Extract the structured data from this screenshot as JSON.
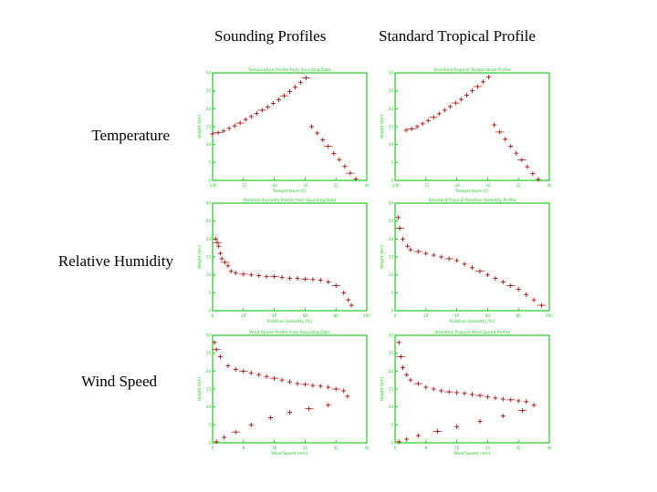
{
  "headers": {
    "col1": "Sounding Profiles",
    "col2": "Standard Tropical Profile"
  },
  "rows": {
    "temperature": "Temperature",
    "humidity": "Relative Humidity",
    "wind": "Wind Speed"
  },
  "colors": {
    "axis": "#22cc22",
    "data": "#aa1111",
    "background": "#ffffff"
  },
  "chart_data": [
    {
      "type": "scatter",
      "title": "Temperature Profile from Sounding Data",
      "xlabel": "Temperature (C)",
      "ylabel": "Height (km)",
      "xlim": [
        -100,
        40
      ],
      "ylim": [
        0,
        30
      ],
      "x": [
        -100,
        -95,
        -90,
        -85,
        -80,
        -75,
        -70,
        -65,
        -60,
        -55,
        -50,
        -45,
        -40,
        -35,
        -30,
        -25,
        -20,
        -15,
        -10,
        -5,
        0,
        5,
        10,
        15,
        20,
        25,
        30
      ],
      "y": [
        13,
        13.3,
        13.8,
        14.5,
        15.2,
        16,
        17,
        17.8,
        18.7,
        19.6,
        20.5,
        21.5,
        22.5,
        23.6,
        24.8,
        26,
        27.3,
        28.6,
        15,
        13.2,
        11.3,
        9.5,
        7.5,
        5.8,
        3.9,
        2,
        0.4
      ]
    },
    {
      "type": "scatter",
      "title": "Standard Tropical Temperature Profile",
      "xlabel": "Temperature (C)",
      "ylabel": "Height (km)",
      "xlim": [
        -100,
        40
      ],
      "ylim": [
        0,
        30
      ],
      "x": [
        -90,
        -85,
        -80,
        -75,
        -70,
        -65,
        -60,
        -55,
        -50,
        -45,
        -40,
        -35,
        -30,
        -25,
        -20,
        -15,
        -10,
        -5,
        0,
        5,
        10,
        15,
        20,
        25,
        30
      ],
      "y": [
        14,
        14.4,
        15,
        15.8,
        16.7,
        17.6,
        18.6,
        19.6,
        20.6,
        21.6,
        22.6,
        23.8,
        25,
        26.2,
        27.5,
        28.8,
        15.5,
        13.5,
        11.5,
        9.5,
        7.6,
        5.7,
        3.8,
        1.9,
        0.3
      ]
    },
    {
      "type": "scatter",
      "title": "Relative Humidity Profile from Sounding Data",
      "xlabel": "Relative Humidity (%)",
      "ylabel": "Height (km)",
      "xlim": [
        0,
        100
      ],
      "ylim": [
        0,
        30
      ],
      "x": [
        2,
        3,
        4,
        5,
        6,
        8,
        10,
        12,
        15,
        20,
        25,
        30,
        35,
        40,
        45,
        50,
        55,
        60,
        65,
        70,
        75,
        80,
        85,
        88,
        90
      ],
      "y": [
        20,
        19,
        18,
        16,
        14.5,
        13.5,
        12.5,
        11,
        10.5,
        10.2,
        10,
        9.8,
        9.5,
        9.5,
        9.3,
        9,
        9,
        8.8,
        8.7,
        8.5,
        8,
        7,
        5,
        3,
        1.5
      ]
    },
    {
      "type": "scatter",
      "title": "Standard Tropical Relative Humidity Profile",
      "xlabel": "Relative Humidity (%)",
      "ylabel": "Height (km)",
      "xlim": [
        0,
        100
      ],
      "ylim": [
        0,
        30
      ],
      "x": [
        2,
        3,
        5,
        8,
        10,
        15,
        20,
        25,
        30,
        35,
        40,
        45,
        50,
        55,
        60,
        65,
        70,
        75,
        80,
        85,
        90,
        95
      ],
      "y": [
        26,
        23,
        20,
        18,
        17,
        16.5,
        16,
        15.5,
        15,
        14.5,
        14,
        13,
        12,
        11,
        10,
        9,
        8,
        7,
        6,
        4.5,
        3,
        1.5
      ]
    },
    {
      "type": "scatter",
      "title": "Wind Speed Profile from Sounding Data",
      "xlabel": "Wind Speed (m/s)",
      "ylabel": "Height (km)",
      "xlim": [
        0,
        40
      ],
      "ylim": [
        0,
        30
      ],
      "x": [
        0.5,
        1,
        2,
        4,
        6,
        8,
        10,
        12,
        14,
        16,
        18,
        20,
        22,
        24,
        26,
        28,
        30,
        32,
        34,
        35,
        30,
        25,
        20,
        15,
        10,
        6,
        3,
        1
      ],
      "y": [
        28,
        26,
        24,
        21.5,
        20.5,
        20,
        19.5,
        19,
        18.5,
        18,
        17.5,
        17,
        16.5,
        16.3,
        16,
        15.8,
        15.5,
        15,
        14.5,
        13,
        10.5,
        9.5,
        8.5,
        7,
        5,
        3,
        1.5,
        0.3
      ]
    },
    {
      "type": "scatter",
      "title": "Standard Tropical Wind Speed Profile",
      "xlabel": "Wind Speed (m/s)",
      "ylabel": "Height (km)",
      "xlim": [
        0,
        40
      ],
      "ylim": [
        0,
        30
      ],
      "x": [
        1,
        1.5,
        2,
        3,
        4,
        6,
        8,
        10,
        12,
        14,
        16,
        18,
        20,
        22,
        24,
        26,
        28,
        30,
        32,
        34,
        36,
        33,
        28,
        22,
        16,
        11,
        6,
        3,
        1
      ],
      "y": [
        28,
        24,
        21,
        19,
        17.5,
        16.5,
        15.5,
        15,
        14.5,
        14.2,
        14,
        13.8,
        13.5,
        13.2,
        12.8,
        12.5,
        12.2,
        12,
        11.7,
        11.5,
        10.5,
        9,
        7.5,
        6,
        4.5,
        3.2,
        2,
        1,
        0.3
      ]
    }
  ]
}
